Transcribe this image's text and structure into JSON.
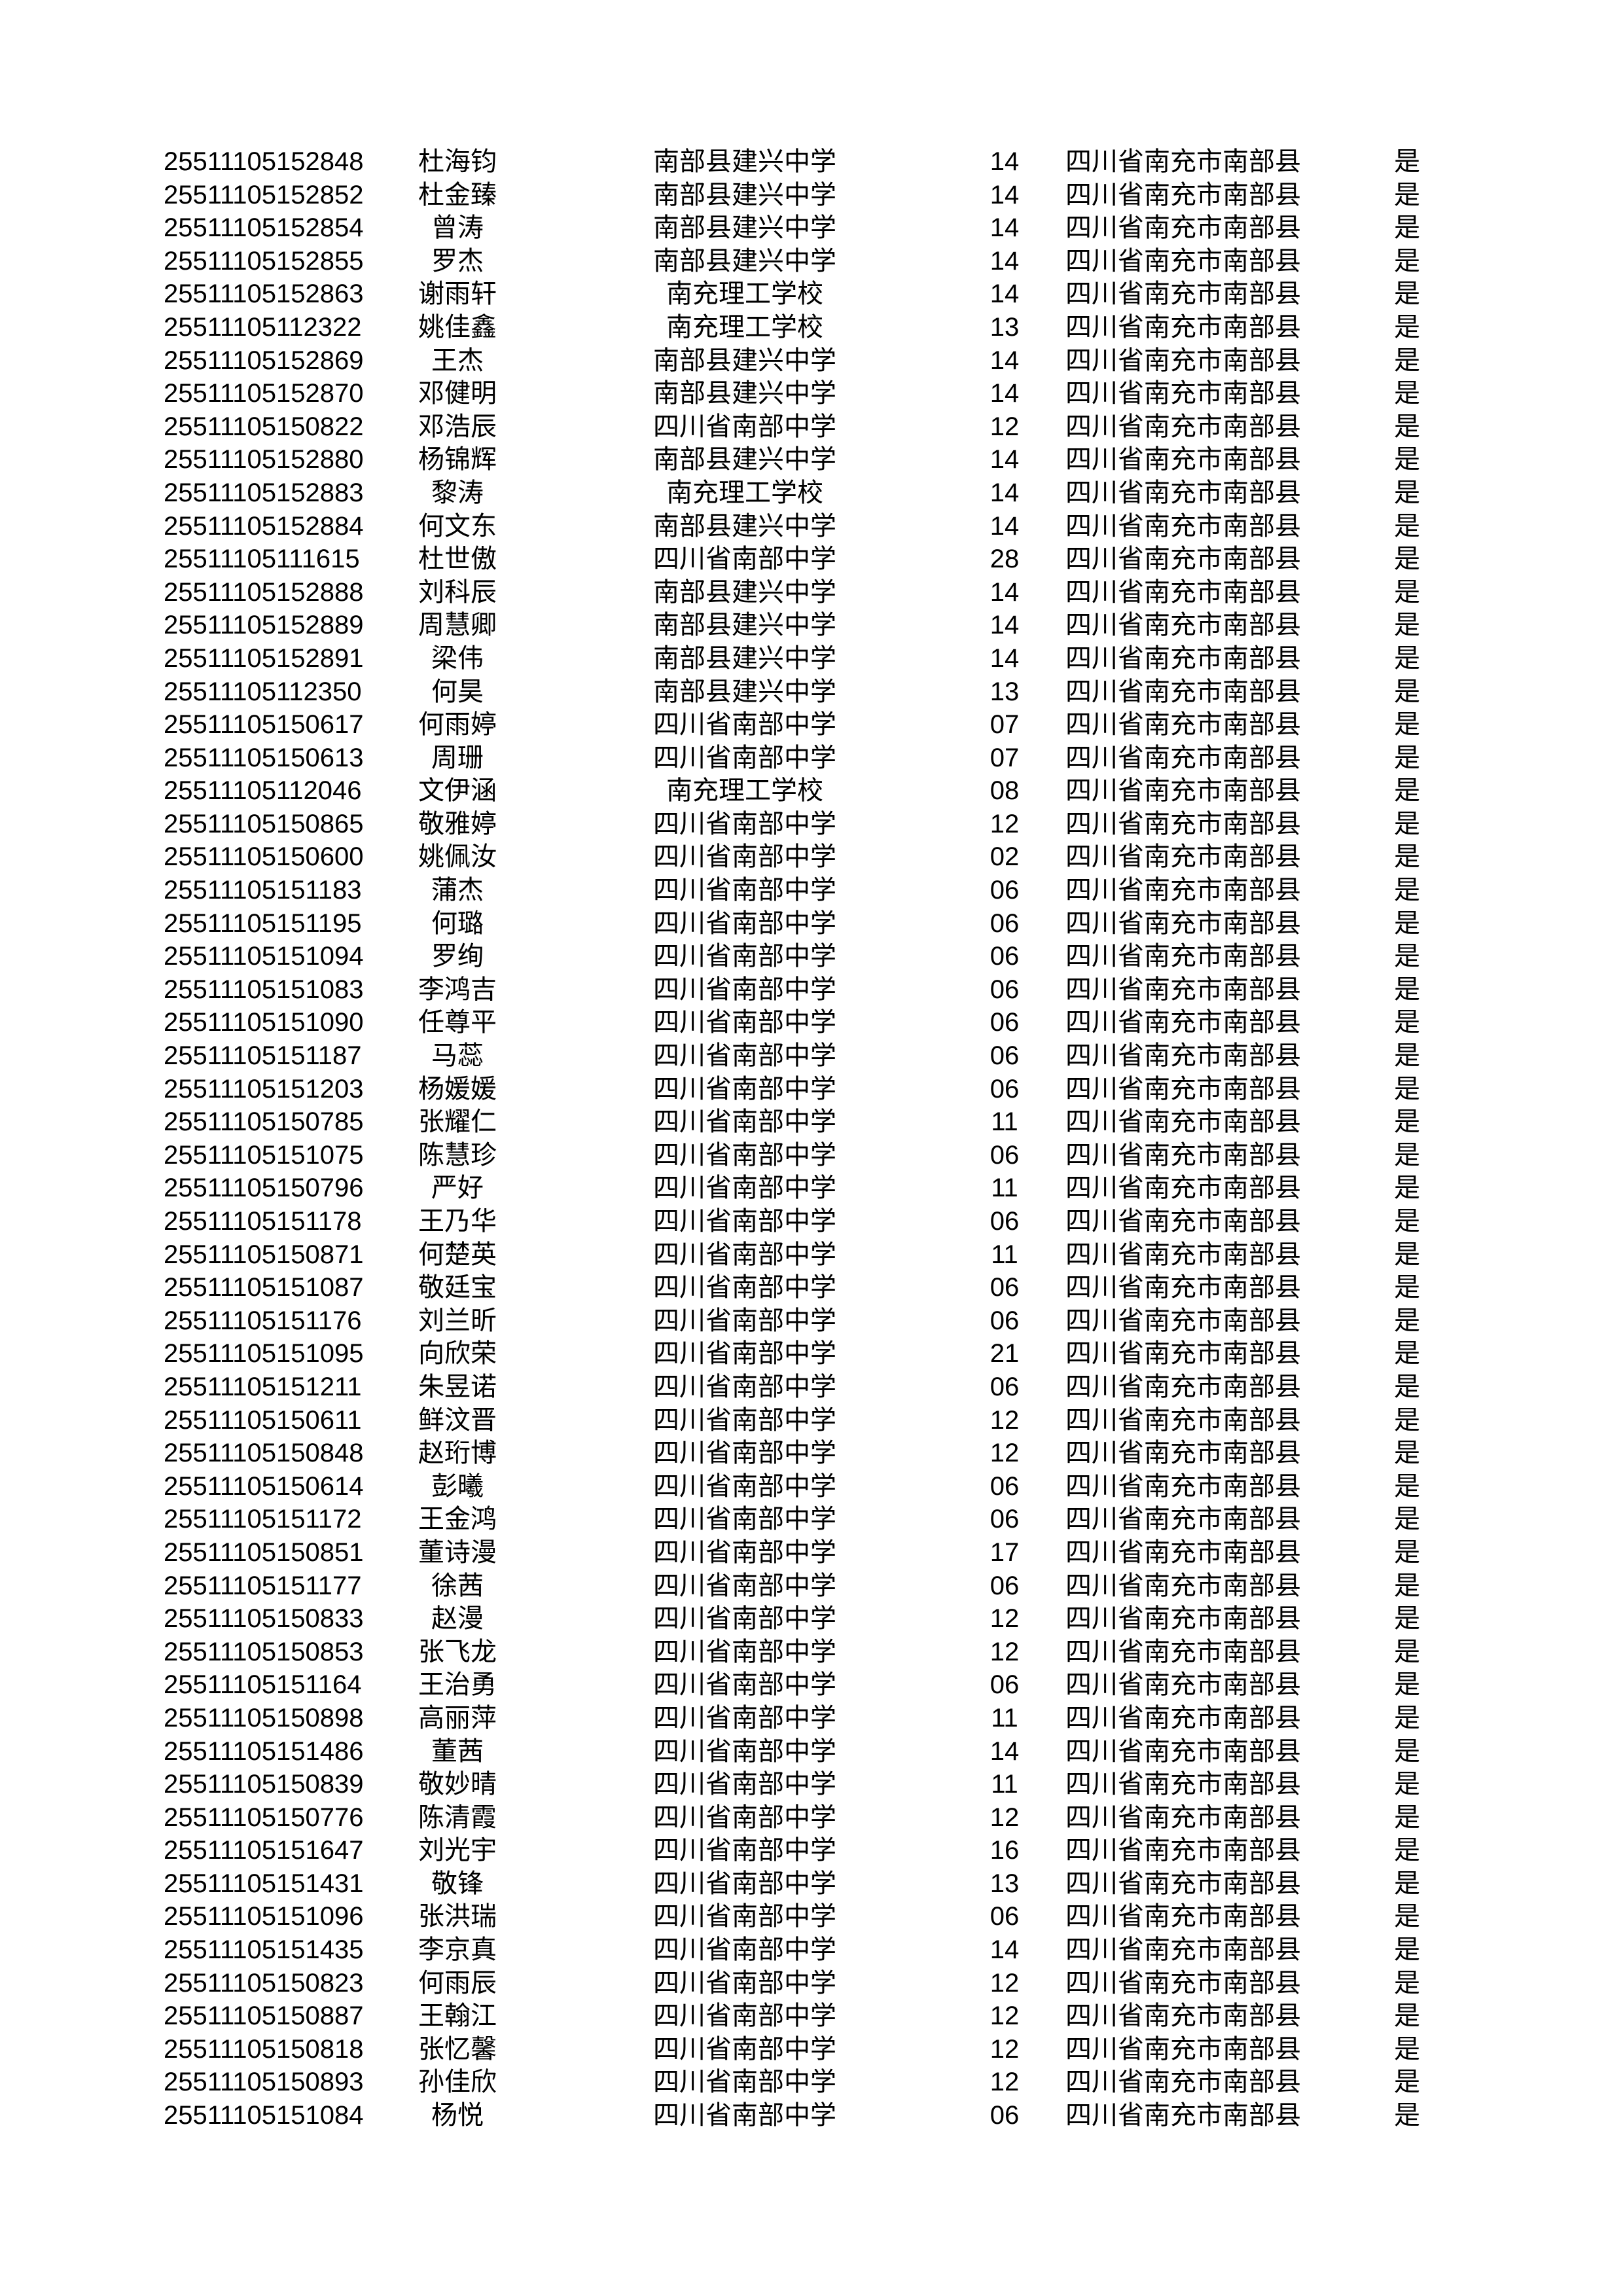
{
  "rows": [
    [
      "25511105152848",
      "杜海钧",
      "南部县建兴中学",
      "14",
      "四川省南充市南部县",
      "是"
    ],
    [
      "25511105152852",
      "杜金臻",
      "南部县建兴中学",
      "14",
      "四川省南充市南部县",
      "是"
    ],
    [
      "25511105152854",
      "曾涛",
      "南部县建兴中学",
      "14",
      "四川省南充市南部县",
      "是"
    ],
    [
      "25511105152855",
      "罗杰",
      "南部县建兴中学",
      "14",
      "四川省南充市南部县",
      "是"
    ],
    [
      "25511105152863",
      "谢雨轩",
      "南充理工学校",
      "14",
      "四川省南充市南部县",
      "是"
    ],
    [
      "25511105112322",
      "姚佳鑫",
      "南充理工学校",
      "13",
      "四川省南充市南部县",
      "是"
    ],
    [
      "25511105152869",
      "王杰",
      "南部县建兴中学",
      "14",
      "四川省南充市南部县",
      "是"
    ],
    [
      "25511105152870",
      "邓健明",
      "南部县建兴中学",
      "14",
      "四川省南充市南部县",
      "是"
    ],
    [
      "25511105150822",
      "邓浩辰",
      "四川省南部中学",
      "12",
      "四川省南充市南部县",
      "是"
    ],
    [
      "25511105152880",
      "杨锦辉",
      "南部县建兴中学",
      "14",
      "四川省南充市南部县",
      "是"
    ],
    [
      "25511105152883",
      "黎涛",
      "南充理工学校",
      "14",
      "四川省南充市南部县",
      "是"
    ],
    [
      "25511105152884",
      "何文东",
      "南部县建兴中学",
      "14",
      "四川省南充市南部县",
      "是"
    ],
    [
      "25511105111615",
      "杜世傲",
      "四川省南部中学",
      "28",
      "四川省南充市南部县",
      "是"
    ],
    [
      "25511105152888",
      "刘科辰",
      "南部县建兴中学",
      "14",
      "四川省南充市南部县",
      "是"
    ],
    [
      "25511105152889",
      "周慧卿",
      "南部县建兴中学",
      "14",
      "四川省南充市南部县",
      "是"
    ],
    [
      "25511105152891",
      "梁伟",
      "南部县建兴中学",
      "14",
      "四川省南充市南部县",
      "是"
    ],
    [
      "25511105112350",
      "何昊",
      "南部县建兴中学",
      "13",
      "四川省南充市南部县",
      "是"
    ],
    [
      "25511105150617",
      "何雨婷",
      "四川省南部中学",
      "07",
      "四川省南充市南部县",
      "是"
    ],
    [
      "25511105150613",
      "周珊",
      "四川省南部中学",
      "07",
      "四川省南充市南部县",
      "是"
    ],
    [
      "25511105112046",
      "文伊涵",
      "南充理工学校",
      "08",
      "四川省南充市南部县",
      "是"
    ],
    [
      "25511105150865",
      "敬雅婷",
      "四川省南部中学",
      "12",
      "四川省南充市南部县",
      "是"
    ],
    [
      "25511105150600",
      "姚佩汝",
      "四川省南部中学",
      "02",
      "四川省南充市南部县",
      "是"
    ],
    [
      "25511105151183",
      "蒲杰",
      "四川省南部中学",
      "06",
      "四川省南充市南部县",
      "是"
    ],
    [
      "25511105151195",
      "何璐",
      "四川省南部中学",
      "06",
      "四川省南充市南部县",
      "是"
    ],
    [
      "25511105151094",
      "罗绚",
      "四川省南部中学",
      "06",
      "四川省南充市南部县",
      "是"
    ],
    [
      "25511105151083",
      "李鸿吉",
      "四川省南部中学",
      "06",
      "四川省南充市南部县",
      "是"
    ],
    [
      "25511105151090",
      "任尊平",
      "四川省南部中学",
      "06",
      "四川省南充市南部县",
      "是"
    ],
    [
      "25511105151187",
      "马蕊",
      "四川省南部中学",
      "06",
      "四川省南充市南部县",
      "是"
    ],
    [
      "25511105151203",
      "杨媛媛",
      "四川省南部中学",
      "06",
      "四川省南充市南部县",
      "是"
    ],
    [
      "25511105150785",
      "张耀仁",
      "四川省南部中学",
      "11",
      "四川省南充市南部县",
      "是"
    ],
    [
      "25511105151075",
      "陈慧珍",
      "四川省南部中学",
      "06",
      "四川省南充市南部县",
      "是"
    ],
    [
      "25511105150796",
      "严好",
      "四川省南部中学",
      "11",
      "四川省南充市南部县",
      "是"
    ],
    [
      "25511105151178",
      "王乃华",
      "四川省南部中学",
      "06",
      "四川省南充市南部县",
      "是"
    ],
    [
      "25511105150871",
      "何楚英",
      "四川省南部中学",
      "11",
      "四川省南充市南部县",
      "是"
    ],
    [
      "25511105151087",
      "敬廷宝",
      "四川省南部中学",
      "06",
      "四川省南充市南部县",
      "是"
    ],
    [
      "25511105151176",
      "刘兰昕",
      "四川省南部中学",
      "06",
      "四川省南充市南部县",
      "是"
    ],
    [
      "25511105151095",
      "向欣荣",
      "四川省南部中学",
      "21",
      "四川省南充市南部县",
      "是"
    ],
    [
      "25511105151211",
      "朱昱诺",
      "四川省南部中学",
      "06",
      "四川省南充市南部县",
      "是"
    ],
    [
      "25511105150611",
      "鲜汶晋",
      "四川省南部中学",
      "12",
      "四川省南充市南部县",
      "是"
    ],
    [
      "25511105150848",
      "赵珩博",
      "四川省南部中学",
      "12",
      "四川省南充市南部县",
      "是"
    ],
    [
      "25511105150614",
      "彭曦",
      "四川省南部中学",
      "06",
      "四川省南充市南部县",
      "是"
    ],
    [
      "25511105151172",
      "王金鸿",
      "四川省南部中学",
      "06",
      "四川省南充市南部县",
      "是"
    ],
    [
      "25511105150851",
      "董诗漫",
      "四川省南部中学",
      "17",
      "四川省南充市南部县",
      "是"
    ],
    [
      "25511105151177",
      "徐茜",
      "四川省南部中学",
      "06",
      "四川省南充市南部县",
      "是"
    ],
    [
      "25511105150833",
      "赵漫",
      "四川省南部中学",
      "12",
      "四川省南充市南部县",
      "是"
    ],
    [
      "25511105150853",
      "张飞龙",
      "四川省南部中学",
      "12",
      "四川省南充市南部县",
      "是"
    ],
    [
      "25511105151164",
      "王治勇",
      "四川省南部中学",
      "06",
      "四川省南充市南部县",
      "是"
    ],
    [
      "25511105150898",
      "高丽萍",
      "四川省南部中学",
      "11",
      "四川省南充市南部县",
      "是"
    ],
    [
      "25511105151486",
      "董茜",
      "四川省南部中学",
      "14",
      "四川省南充市南部县",
      "是"
    ],
    [
      "25511105150839",
      "敬妙晴",
      "四川省南部中学",
      "11",
      "四川省南充市南部县",
      "是"
    ],
    [
      "25511105150776",
      "陈清霞",
      "四川省南部中学",
      "12",
      "四川省南充市南部县",
      "是"
    ],
    [
      "25511105151647",
      "刘光宇",
      "四川省南部中学",
      "16",
      "四川省南充市南部县",
      "是"
    ],
    [
      "25511105151431",
      "敬锋",
      "四川省南部中学",
      "13",
      "四川省南充市南部县",
      "是"
    ],
    [
      "25511105151096",
      "张洪瑞",
      "四川省南部中学",
      "06",
      "四川省南充市南部县",
      "是"
    ],
    [
      "25511105151435",
      "李京真",
      "四川省南部中学",
      "14",
      "四川省南充市南部县",
      "是"
    ],
    [
      "25511105150823",
      "何雨辰",
      "四川省南部中学",
      "12",
      "四川省南充市南部县",
      "是"
    ],
    [
      "25511105150887",
      "王翰江",
      "四川省南部中学",
      "12",
      "四川省南充市南部县",
      "是"
    ],
    [
      "25511105150818",
      "张忆馨",
      "四川省南部中学",
      "12",
      "四川省南充市南部县",
      "是"
    ],
    [
      "25511105150893",
      "孙佳欣",
      "四川省南部中学",
      "12",
      "四川省南充市南部县",
      "是"
    ],
    [
      "25511105151084",
      "杨悦",
      "四川省南部中学",
      "06",
      "四川省南充市南部县",
      "是"
    ]
  ]
}
